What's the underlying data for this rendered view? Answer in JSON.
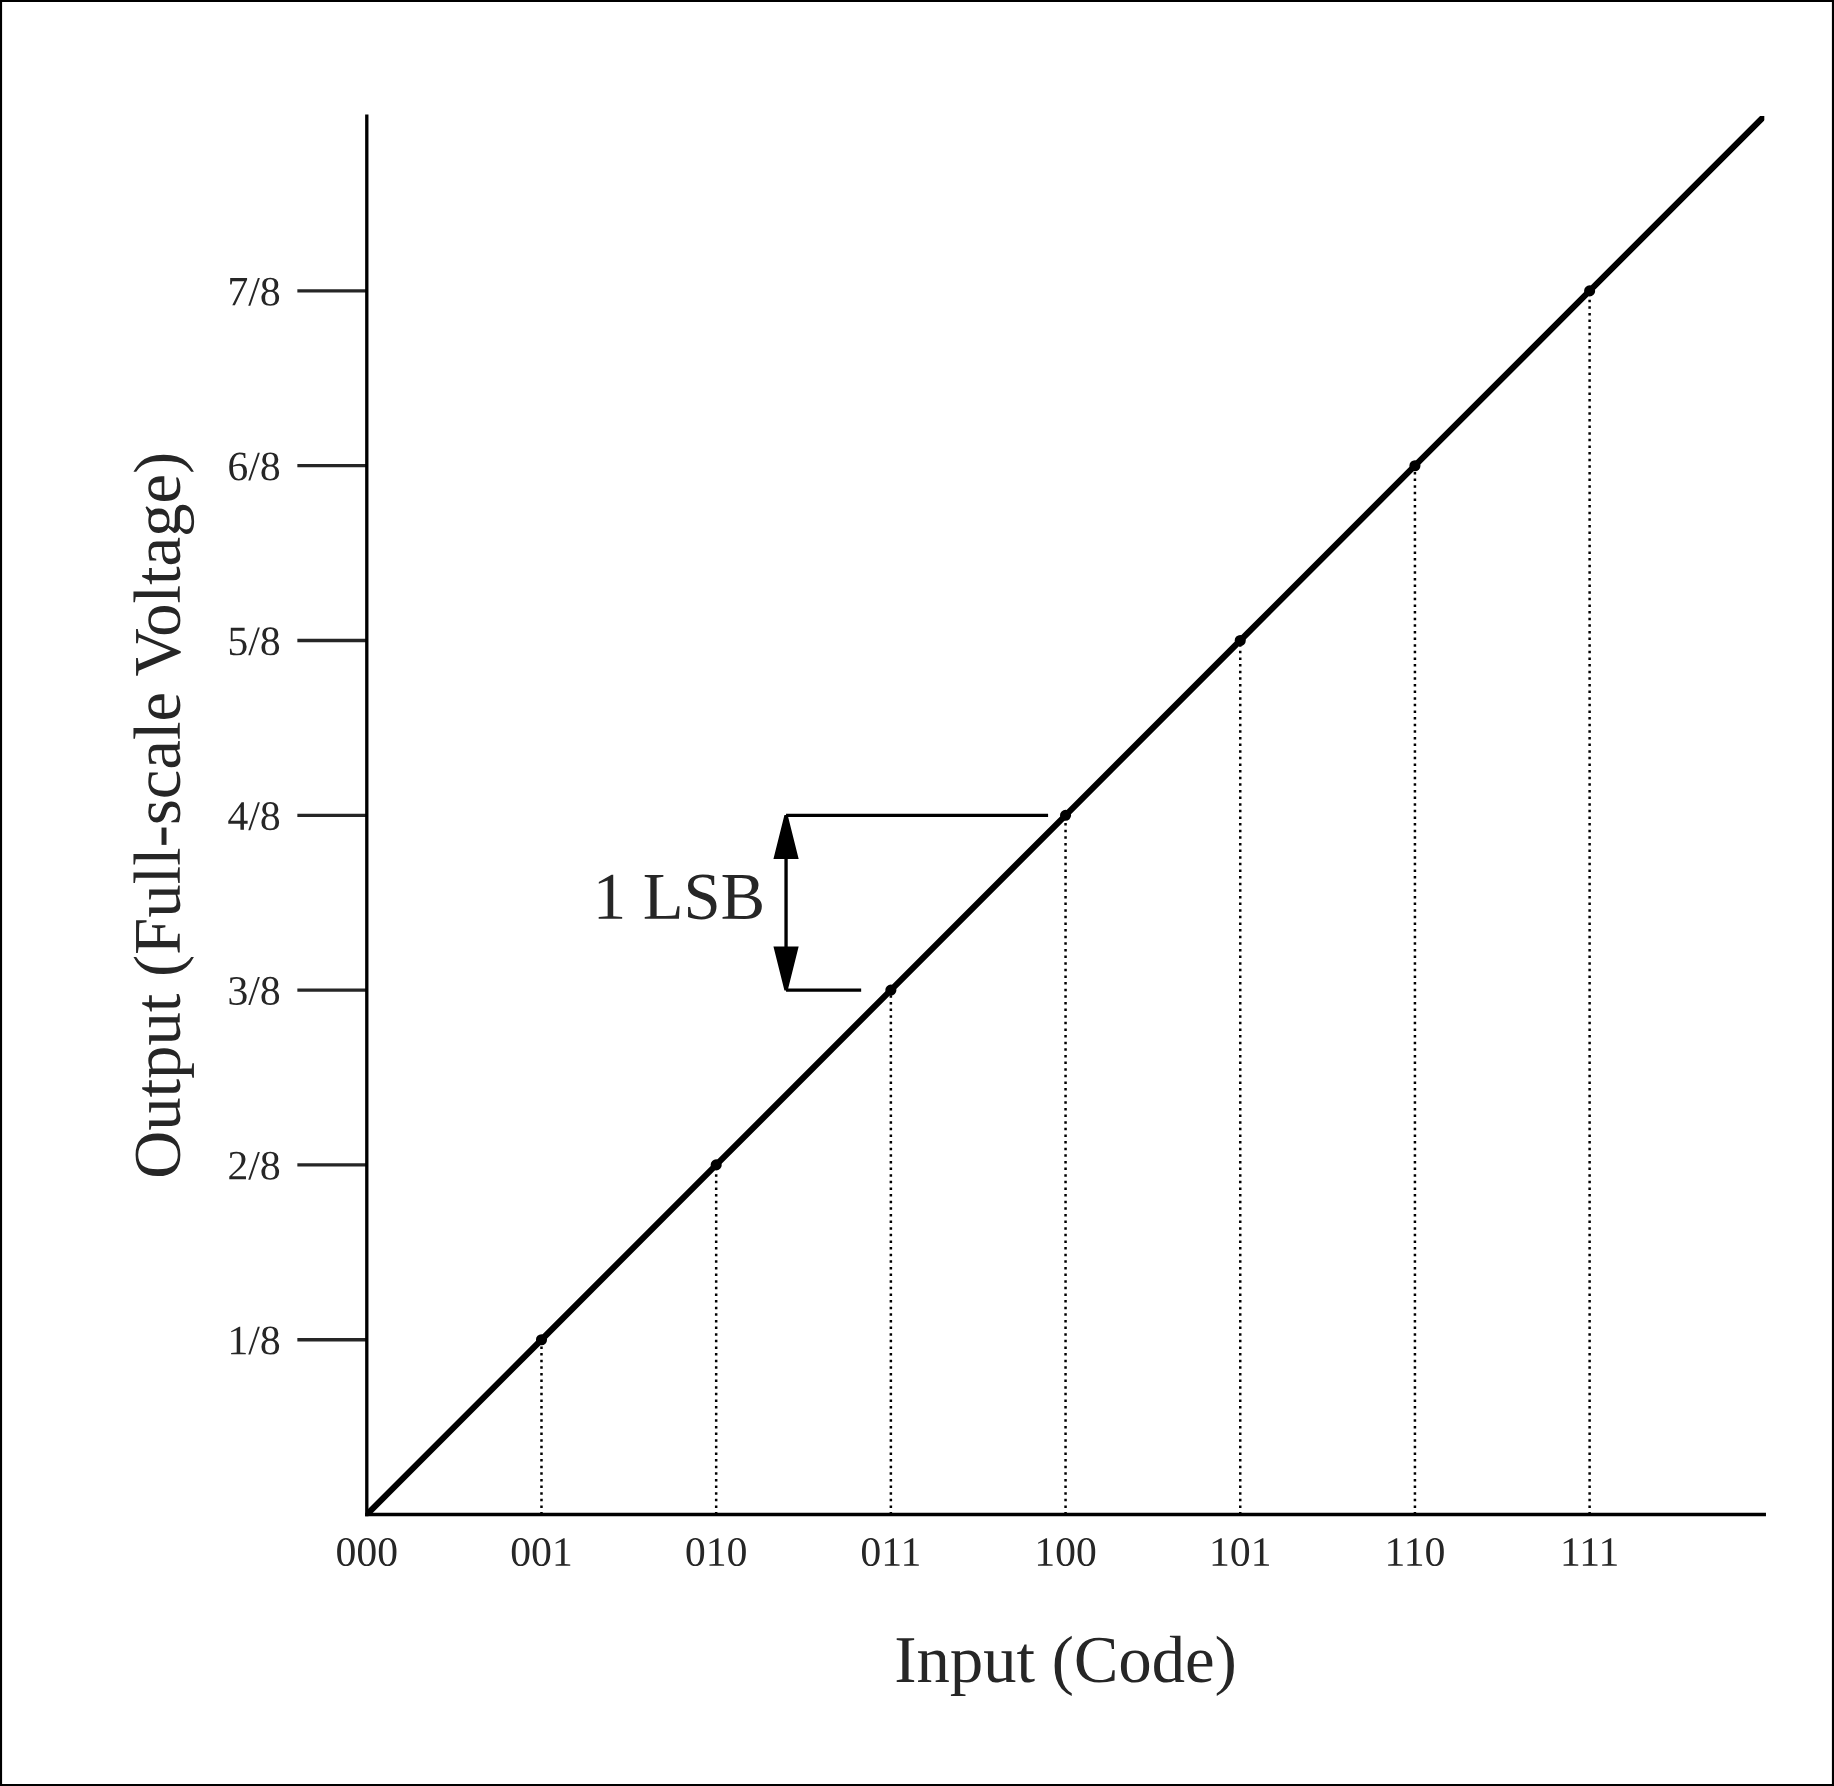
{
  "chart_data": {
    "type": "line",
    "xlabel": "Input (Code)",
    "ylabel": "Output (Full-scale Voltage)",
    "categories": [
      "000",
      "001",
      "010",
      "011",
      "100",
      "101",
      "110",
      "111",
      null
    ],
    "ylim": [
      0,
      1
    ],
    "yticks": [
      {
        "value": 0.125,
        "label": "1/8"
      },
      {
        "value": 0.25,
        "label": "2/8"
      },
      {
        "value": 0.375,
        "label": "3/8"
      },
      {
        "value": 0.5,
        "label": "4/8"
      },
      {
        "value": 0.625,
        "label": "5/8"
      },
      {
        "value": 0.75,
        "label": "6/8"
      },
      {
        "value": 0.875,
        "label": "7/8"
      }
    ],
    "series": [
      {
        "color": "#000000",
        "values": [
          0,
          0.125,
          0.25,
          0.375,
          0.5,
          0.625,
          0.75,
          0.875,
          1
        ],
        "line_style": "solid"
      },
      {
        "type": "lollipop",
        "color": "#000000",
        "values": [
          null,
          0.125,
          0.25,
          0.375,
          0.5,
          0.625,
          0.75,
          0.875,
          null
        ],
        "line_style": "dotted",
        "marker": "circle"
      }
    ],
    "annotations": [
      "1 LSB"
    ]
  }
}
